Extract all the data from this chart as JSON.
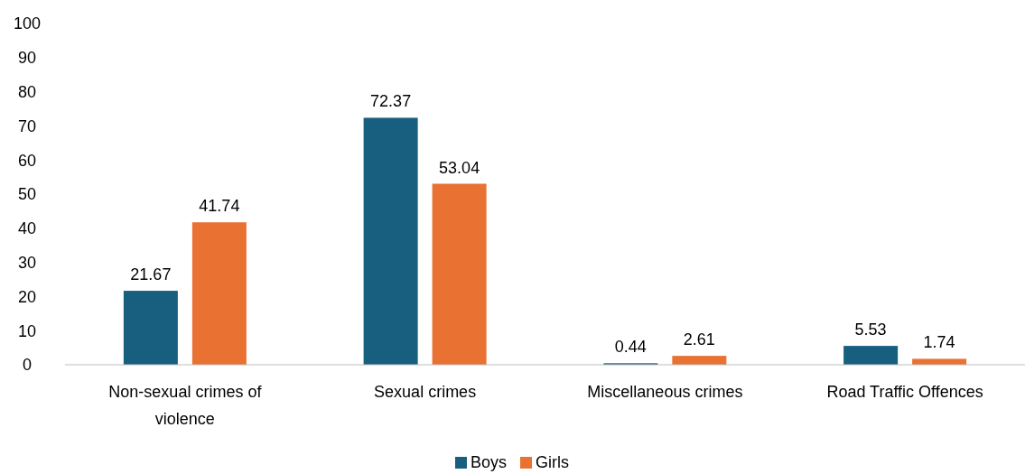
{
  "chart_data": {
    "type": "bar",
    "categories": [
      "Non-sexual crimes of violence",
      "Sexual crimes",
      "Miscellaneous crimes",
      "Road Traffic Offences"
    ],
    "series": [
      {
        "name": "Boys",
        "color": "#175e7f",
        "values": [
          21.67,
          72.37,
          0.44,
          5.53
        ]
      },
      {
        "name": "Girls",
        "color": "#e97132",
        "values": [
          41.74,
          53.04,
          2.61,
          1.74
        ]
      }
    ],
    "ylim": [
      0,
      100
    ],
    "yticks": [
      0,
      10,
      20,
      30,
      40,
      50,
      60,
      70,
      80,
      90,
      100
    ],
    "grid": false,
    "legend": "bottom",
    "data_labels": true
  }
}
